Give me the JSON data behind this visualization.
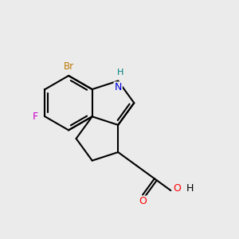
{
  "bg_color": "#ebebeb",
  "bond_color": "#000000",
  "bond_width": 1.5,
  "N_color": "#0000dd",
  "O_color": "#ff0000",
  "F_color": "#cc00cc",
  "Br_color": "#bb7700",
  "NH_color": "#008080",
  "figsize": [
    3.0,
    3.0
  ],
  "dpi": 100,
  "xlim": [
    0,
    10
  ],
  "ylim": [
    0,
    10
  ]
}
